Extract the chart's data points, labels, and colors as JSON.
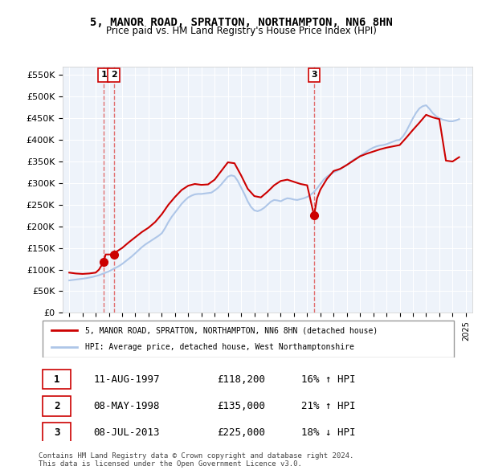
{
  "title": "5, MANOR ROAD, SPRATTON, NORTHAMPTON, NN6 8HN",
  "subtitle": "Price paid vs. HM Land Registry's House Price Index (HPI)",
  "legend_line1": "5, MANOR ROAD, SPRATTON, NORTHAMPTON, NN6 8HN (detached house)",
  "legend_line2": "HPI: Average price, detached house, West Northamptonshire",
  "footer1": "Contains HM Land Registry data © Crown copyright and database right 2024.",
  "footer2": "This data is licensed under the Open Government Licence v3.0.",
  "transactions": [
    {
      "label": "1",
      "date": "11-AUG-1997",
      "price": 118200,
      "hpi_diff": "16% ↑ HPI",
      "x": 1997.61
    },
    {
      "label": "2",
      "date": "08-MAY-1998",
      "price": 135000,
      "hpi_diff": "21% ↑ HPI",
      "x": 1998.36
    },
    {
      "label": "3",
      "date": "08-JUL-2013",
      "price": 225000,
      "hpi_diff": "18% ↓ HPI",
      "x": 2013.52
    }
  ],
  "hpi_color": "#aec6e8",
  "price_color": "#cc0000",
  "dashed_color": "#e06060",
  "background_color": "#eef3fa",
  "ylim": [
    0,
    570000
  ],
  "xlim_start": 1994.5,
  "xlim_end": 2025.5,
  "yticks": [
    0,
    50000,
    100000,
    150000,
    200000,
    250000,
    300000,
    350000,
    400000,
    450000,
    500000,
    550000
  ],
  "xticks": [
    1995,
    1996,
    1997,
    1998,
    1999,
    2000,
    2001,
    2002,
    2003,
    2004,
    2005,
    2006,
    2007,
    2008,
    2009,
    2010,
    2011,
    2012,
    2013,
    2014,
    2015,
    2016,
    2017,
    2018,
    2019,
    2020,
    2021,
    2022,
    2023,
    2024,
    2025
  ],
  "hpi_data_x": [
    1995.0,
    1995.25,
    1995.5,
    1995.75,
    1996.0,
    1996.25,
    1996.5,
    1996.75,
    1997.0,
    1997.25,
    1997.5,
    1997.75,
    1998.0,
    1998.25,
    1998.5,
    1998.75,
    1999.0,
    1999.25,
    1999.5,
    1999.75,
    2000.0,
    2000.25,
    2000.5,
    2000.75,
    2001.0,
    2001.25,
    2001.5,
    2001.75,
    2002.0,
    2002.25,
    2002.5,
    2002.75,
    2003.0,
    2003.25,
    2003.5,
    2003.75,
    2004.0,
    2004.25,
    2004.5,
    2004.75,
    2005.0,
    2005.25,
    2005.5,
    2005.75,
    2006.0,
    2006.25,
    2006.5,
    2006.75,
    2007.0,
    2007.25,
    2007.5,
    2007.75,
    2008.0,
    2008.25,
    2008.5,
    2008.75,
    2009.0,
    2009.25,
    2009.5,
    2009.75,
    2010.0,
    2010.25,
    2010.5,
    2010.75,
    2011.0,
    2011.25,
    2011.5,
    2011.75,
    2012.0,
    2012.25,
    2012.5,
    2012.75,
    2013.0,
    2013.25,
    2013.5,
    2013.75,
    2014.0,
    2014.25,
    2014.5,
    2014.75,
    2015.0,
    2015.25,
    2015.5,
    2015.75,
    2016.0,
    2016.25,
    2016.5,
    2016.75,
    2017.0,
    2017.25,
    2017.5,
    2017.75,
    2018.0,
    2018.25,
    2018.5,
    2018.75,
    2019.0,
    2019.25,
    2019.5,
    2019.75,
    2020.0,
    2020.25,
    2020.5,
    2020.75,
    2021.0,
    2021.25,
    2021.5,
    2021.75,
    2022.0,
    2022.25,
    2022.5,
    2022.75,
    2023.0,
    2023.25,
    2023.5,
    2023.75,
    2024.0,
    2024.25,
    2024.5
  ],
  "hpi_data_y": [
    75000,
    76000,
    77000,
    78000,
    79000,
    80000,
    81500,
    83000,
    85000,
    87000,
    90000,
    93000,
    96000,
    100000,
    104000,
    108000,
    113000,
    119000,
    125000,
    131000,
    138000,
    145000,
    152000,
    158000,
    163000,
    168000,
    173000,
    178000,
    184000,
    196000,
    210000,
    222000,
    232000,
    242000,
    252000,
    260000,
    267000,
    271000,
    274000,
    275000,
    275000,
    276000,
    277000,
    278000,
    283000,
    289000,
    297000,
    306000,
    315000,
    318000,
    316000,
    305000,
    290000,
    275000,
    258000,
    245000,
    237000,
    235000,
    238000,
    243000,
    250000,
    257000,
    261000,
    260000,
    258000,
    262000,
    265000,
    264000,
    262000,
    261000,
    263000,
    265000,
    268000,
    273000,
    279000,
    288000,
    298000,
    308000,
    315000,
    320000,
    325000,
    328000,
    333000,
    337000,
    342000,
    348000,
    354000,
    358000,
    363000,
    368000,
    373000,
    378000,
    382000,
    385000,
    387000,
    388000,
    390000,
    393000,
    396000,
    399000,
    400000,
    408000,
    420000,
    435000,
    450000,
    463000,
    473000,
    478000,
    480000,
    472000,
    462000,
    455000,
    450000,
    447000,
    445000,
    443000,
    443000,
    445000,
    448000
  ],
  "price_line_x": [
    1995.0,
    1995.5,
    1996.0,
    1996.5,
    1997.0,
    1997.25,
    1997.61,
    1997.75,
    1998.0,
    1998.36,
    1998.5,
    1999.0,
    1999.5,
    2000.0,
    2000.5,
    2001.0,
    2001.5,
    2002.0,
    2002.5,
    2003.0,
    2003.5,
    2004.0,
    2004.5,
    2005.0,
    2005.5,
    2006.0,
    2006.5,
    2007.0,
    2007.5,
    2008.0,
    2008.5,
    2009.0,
    2009.5,
    2010.0,
    2010.5,
    2011.0,
    2011.5,
    2012.0,
    2012.5,
    2013.0,
    2013.52,
    2013.75,
    2014.0,
    2014.5,
    2015.0,
    2015.5,
    2016.0,
    2016.5,
    2017.0,
    2017.5,
    2018.0,
    2018.5,
    2019.0,
    2019.5,
    2020.0,
    2020.5,
    2021.0,
    2021.5,
    2022.0,
    2022.5,
    2023.0,
    2023.5,
    2024.0,
    2024.5
  ],
  "price_line_y": [
    93000,
    91000,
    90000,
    91000,
    93000,
    100000,
    118200,
    135000,
    135000,
    135000,
    140000,
    150000,
    163000,
    175000,
    187000,
    197000,
    210000,
    228000,
    250000,
    268000,
    284000,
    294000,
    298000,
    296000,
    297000,
    308000,
    328000,
    348000,
    346000,
    318000,
    287000,
    270000,
    267000,
    280000,
    295000,
    305000,
    308000,
    303000,
    298000,
    295000,
    225000,
    265000,
    285000,
    310000,
    328000,
    333000,
    342000,
    352000,
    362000,
    368000,
    373000,
    378000,
    382000,
    385000,
    388000,
    405000,
    423000,
    440000,
    458000,
    452000,
    448000,
    352000,
    350000,
    360000
  ]
}
